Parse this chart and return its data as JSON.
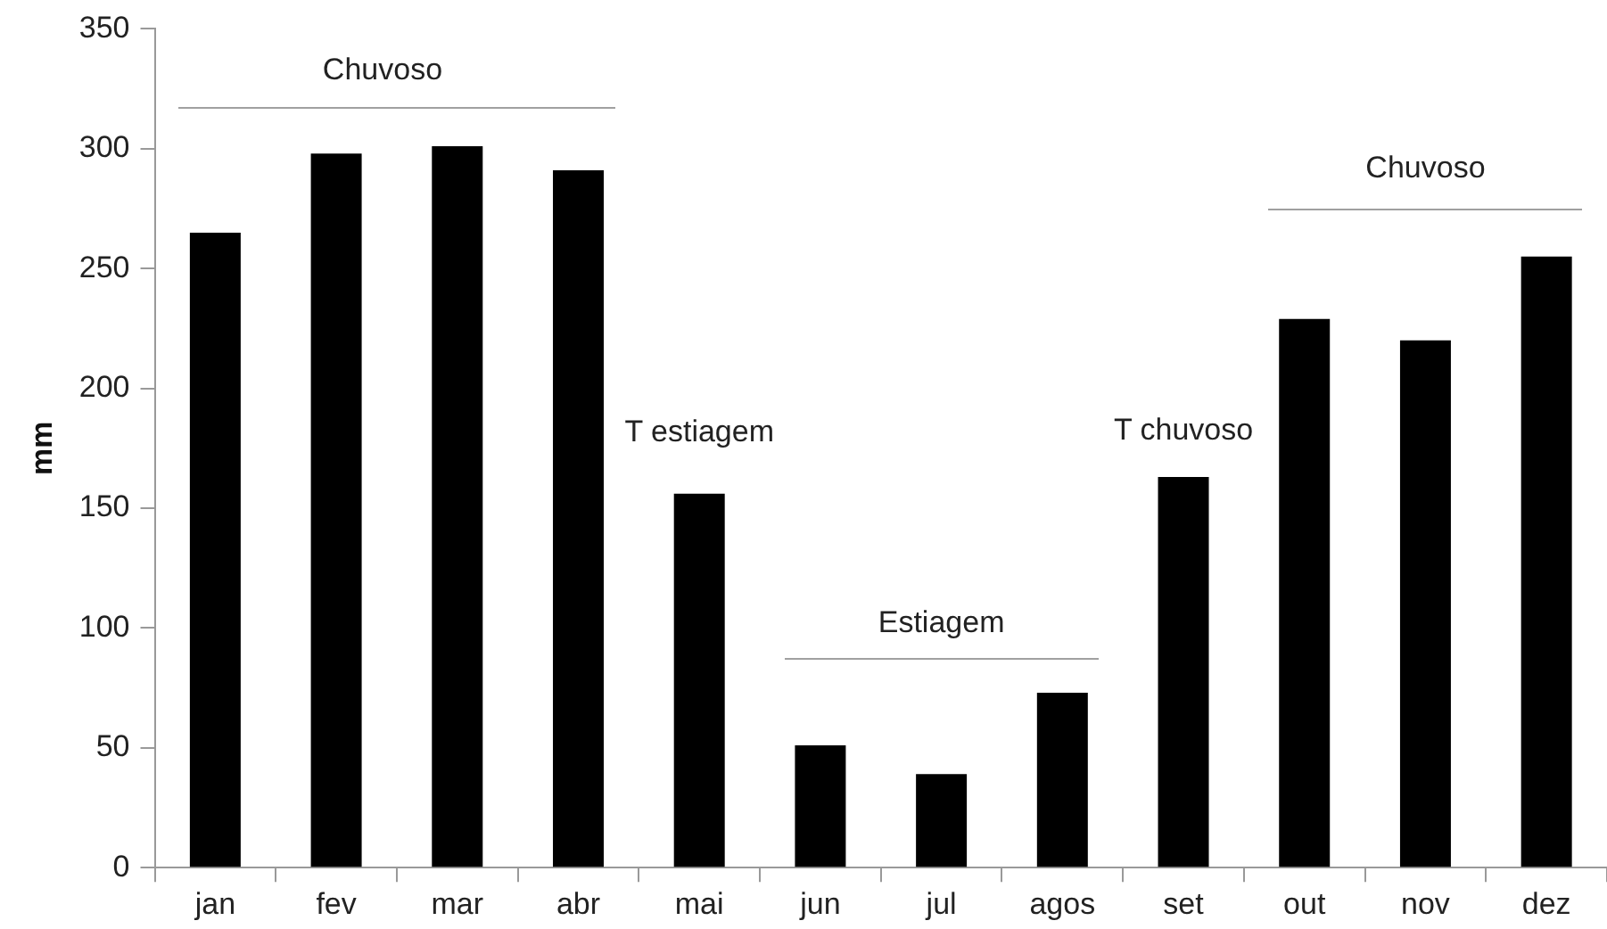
{
  "chart_data": {
    "type": "bar",
    "ylabel": "mm",
    "categories": [
      "jan",
      "fev",
      "mar",
      "abr",
      "mai",
      "jun",
      "jul",
      "agos",
      "set",
      "out",
      "nov",
      "dez"
    ],
    "values": [
      265,
      298,
      301,
      291,
      156,
      51,
      39,
      73,
      163,
      229,
      220,
      255
    ],
    "color": "#000000",
    "ylim": [
      0,
      350
    ],
    "yticks": [
      0,
      50,
      100,
      150,
      200,
      250,
      300,
      350
    ],
    "grid": false,
    "legend": false,
    "annotations": [
      "Chuvoso",
      "T estiagem",
      "Estiagem",
      "T chuvoso",
      "Chuvoso"
    ]
  }
}
